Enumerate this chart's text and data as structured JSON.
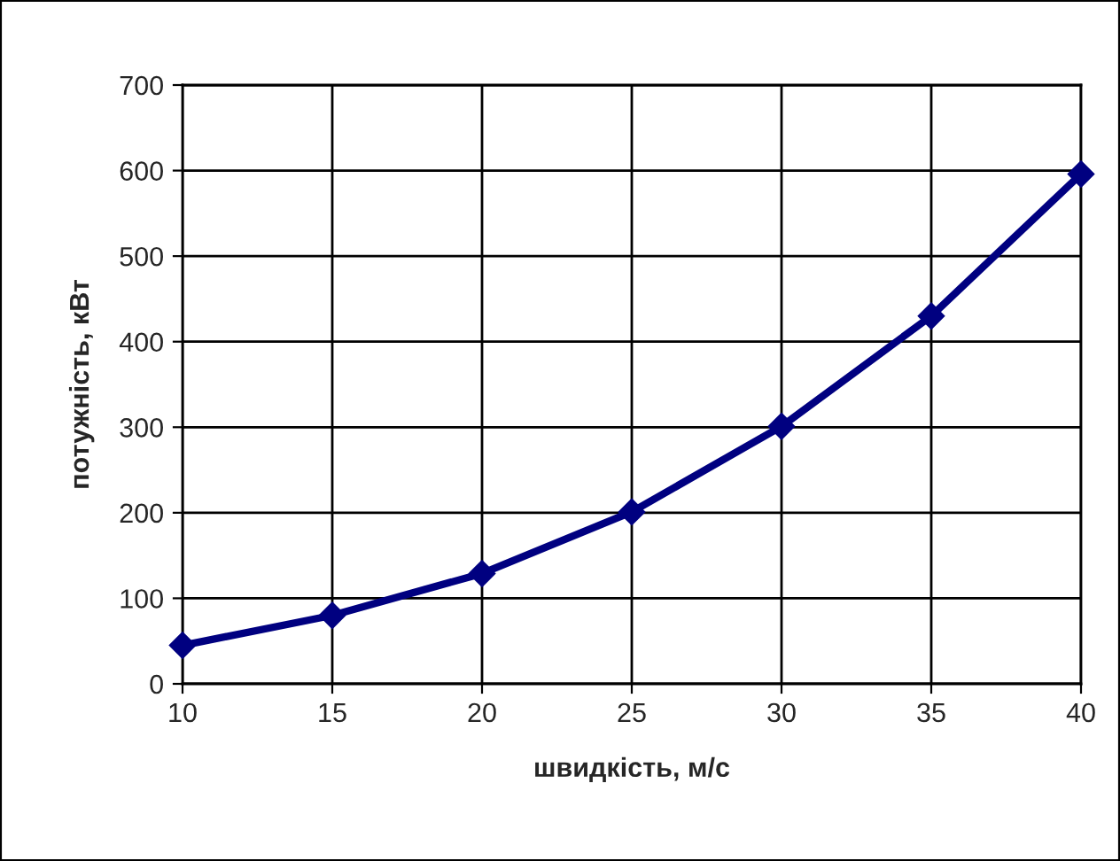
{
  "chart_data": {
    "type": "line",
    "xlabel": "швидкість, м/с",
    "ylabel": "потужність, кВт",
    "x": [
      10,
      15,
      20,
      25,
      30,
      35,
      40
    ],
    "series": [
      {
        "color": "#000080",
        "values": [
          45,
          80,
          129,
          201,
          301,
          430,
          596
        ]
      }
    ],
    "xlim": [
      10,
      40
    ],
    "xticks": [
      10,
      15,
      20,
      25,
      30,
      35,
      40
    ],
    "ylim": [
      0,
      700
    ],
    "yticks": [
      0,
      100,
      200,
      300,
      400,
      500,
      600,
      700
    ],
    "grid": true,
    "marker": "diamond",
    "line_style": "solid",
    "legend": false
  }
}
